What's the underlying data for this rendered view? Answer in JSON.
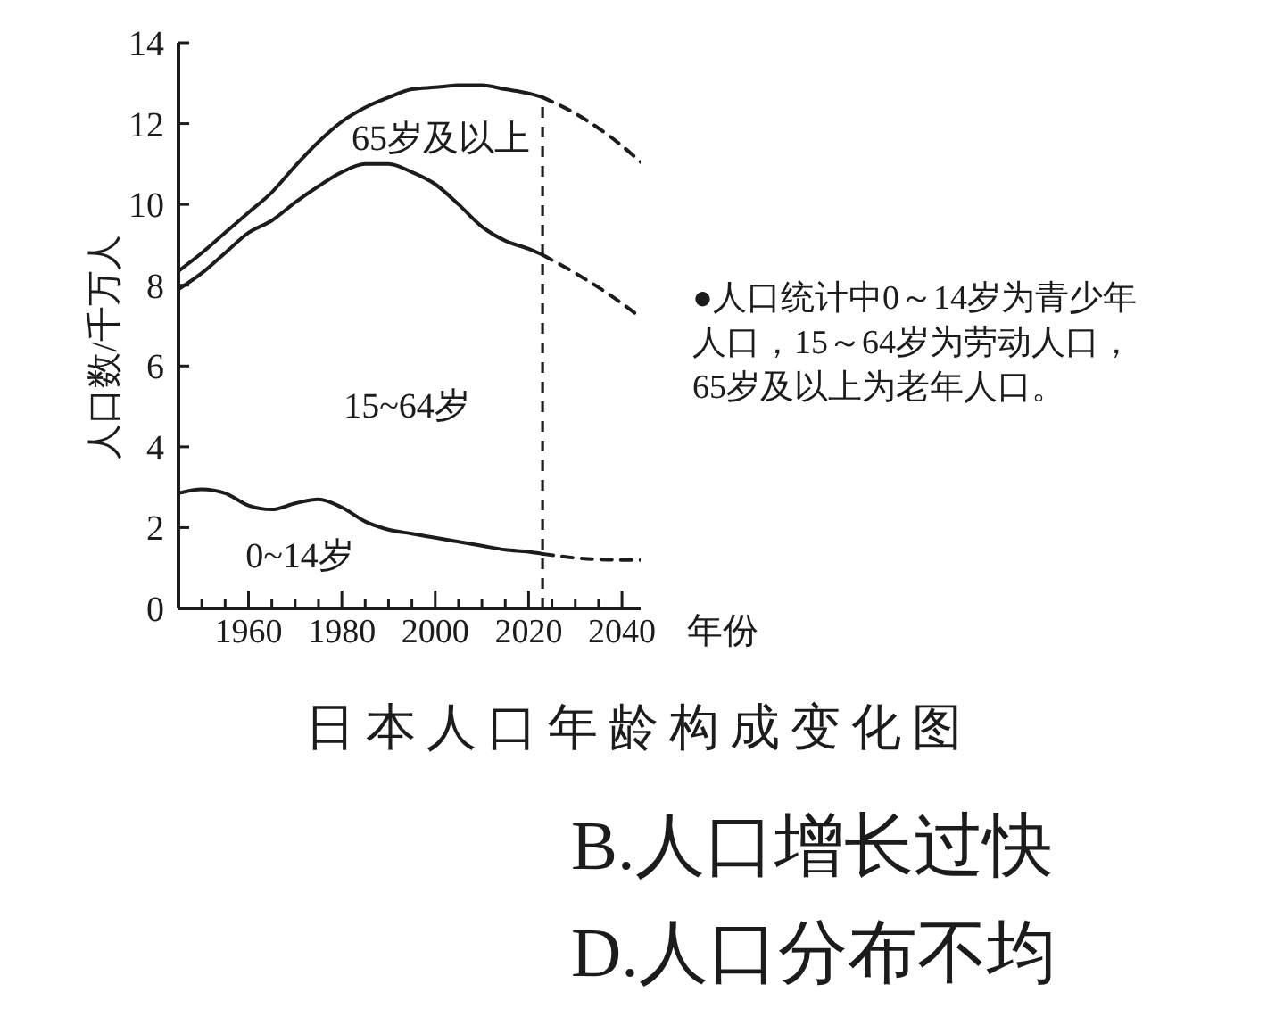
{
  "chart_data": {
    "type": "line",
    "title": "日本人口年龄构成变化图",
    "xlabel": "年份",
    "ylabel": "人口数/千万人",
    "x": [
      1945,
      1950,
      1955,
      1960,
      1965,
      1970,
      1975,
      1980,
      1985,
      1990,
      1995,
      2000,
      2005,
      2010,
      2015,
      2020,
      2023
    ],
    "series": [
      {
        "color": "#1c1c1c",
        "values": [
          2.85,
          2.95,
          2.85,
          2.55,
          2.45,
          2.6,
          2.7,
          2.5,
          2.15,
          1.95,
          1.85,
          1.75,
          1.65,
          1.55,
          1.45,
          1.4,
          1.35
        ]
      },
      {
        "color": "#1c1c1c",
        "values": [
          7.9,
          8.3,
          8.8,
          9.3,
          9.6,
          10.05,
          10.45,
          10.8,
          11.0,
          11.0,
          10.8,
          10.5,
          10.0,
          9.45,
          9.1,
          8.9,
          8.75
        ]
      },
      {
        "color": "#1c1c1c",
        "values": [
          8.35,
          8.8,
          9.3,
          9.8,
          10.3,
          10.95,
          11.55,
          12.05,
          12.4,
          12.65,
          12.85,
          12.9,
          12.95,
          12.95,
          12.85,
          12.75,
          12.65
        ]
      },
      {
        "color": "#1c1c1c",
        "line_style": "dashed",
        "x": [
          2023,
          2030,
          2040,
          2044
        ],
        "values": [
          1.35,
          1.25,
          1.2,
          1.2
        ]
      },
      {
        "color": "#1c1c1c",
        "line_style": "dashed",
        "x": [
          2023,
          2030,
          2040,
          2044
        ],
        "values": [
          8.75,
          8.3,
          7.55,
          7.2
        ]
      },
      {
        "color": "#1c1c1c",
        "line_style": "dashed",
        "x": [
          2023,
          2030,
          2040,
          2044
        ],
        "values": [
          12.65,
          12.25,
          11.45,
          11.05
        ]
      }
    ],
    "xlim": [
      1945,
      2044
    ],
    "xticks": [
      {
        "value": 1950,
        "label": null
      },
      {
        "value": 1955,
        "label": null
      },
      1960,
      {
        "value": 1965,
        "label": null
      },
      {
        "value": 1970,
        "label": null
      },
      {
        "value": 1975,
        "label": null
      },
      1980,
      {
        "value": 1985,
        "label": null
      },
      {
        "value": 1990,
        "label": null
      },
      {
        "value": 1995,
        "label": null
      },
      2000,
      {
        "value": 2005,
        "label": null
      },
      {
        "value": 2010,
        "label": null
      },
      {
        "value": 2015,
        "label": null
      },
      2020,
      {
        "value": 2025,
        "label": null
      },
      {
        "value": 2030,
        "label": null
      },
      {
        "value": 2035,
        "label": null
      },
      2040
    ],
    "ylim": [
      0,
      14
    ],
    "yticks": [
      0,
      2,
      4,
      6,
      8,
      10,
      12,
      14
    ],
    "ref_lines": [
      {
        "axis": "x",
        "value": 2023,
        "line_style": "dashed",
        "color": "#1c1c1c"
      }
    ],
    "annotations": [
      "65岁及以上",
      "15~64岁",
      "0~14岁",
      "●人口统计中0～14岁为青少年人口，15～64岁为劳动人口，65岁及以上为老年人口。",
      "B.人口增长过快",
      "D.人口分布不均"
    ]
  }
}
